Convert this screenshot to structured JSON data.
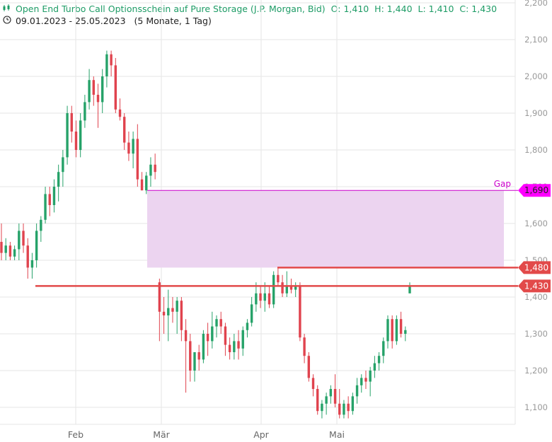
{
  "header": {
    "title": "Open End Turbo Call Optionsschein auf Pure Storage (J.P. Morgan, Bid)",
    "ohlc": "O: 1,410  H: 1,440  L: 1,410  C: 1,430",
    "range": "09.01.2023 - 25.05.2023",
    "period": "(5 Monate, 1 Tag)",
    "chart_icon": "candlestick-icon",
    "clock_icon": "clock-icon"
  },
  "colors": {
    "up": "#26a269",
    "down": "#e0434e",
    "gap_fill": "#ecd4f0",
    "gap_line": "#cc00cc",
    "level_line": "#e24a4a",
    "grid": "#e6e6e6"
  },
  "chart_data": {
    "type": "candlestick",
    "y_ticks": [
      "1,100",
      "1,200",
      "1,300",
      "1,400",
      "1,500",
      "1,600",
      "1,700",
      "1,800",
      "1,900",
      "2,000",
      "2,100",
      "2,200"
    ],
    "ylim": [
      1.03,
      2.2
    ],
    "x_labels": [
      "Feb",
      "Mär",
      "Apr",
      "Mai"
    ],
    "candles": [
      [
        1.55,
        1.6,
        1.5,
        1.52
      ],
      [
        1.52,
        1.56,
        1.5,
        1.54
      ],
      [
        1.54,
        1.55,
        1.5,
        1.51
      ],
      [
        1.51,
        1.54,
        1.5,
        1.53
      ],
      [
        1.53,
        1.6,
        1.5,
        1.58
      ],
      [
        1.58,
        1.6,
        1.52,
        1.54
      ],
      [
        1.54,
        1.56,
        1.45,
        1.48
      ],
      [
        1.48,
        1.52,
        1.45,
        1.5
      ],
      [
        1.5,
        1.6,
        1.48,
        1.58
      ],
      [
        1.58,
        1.62,
        1.55,
        1.61
      ],
      [
        1.61,
        1.7,
        1.6,
        1.68
      ],
      [
        1.68,
        1.7,
        1.62,
        1.65
      ],
      [
        1.65,
        1.72,
        1.63,
        1.7
      ],
      [
        1.7,
        1.76,
        1.66,
        1.74
      ],
      [
        1.74,
        1.8,
        1.7,
        1.78
      ],
      [
        1.78,
        1.92,
        1.76,
        1.9
      ],
      [
        1.9,
        1.92,
        1.82,
        1.85
      ],
      [
        1.85,
        1.88,
        1.78,
        1.8
      ],
      [
        1.8,
        1.9,
        1.78,
        1.88
      ],
      [
        1.88,
        1.95,
        1.86,
        1.93
      ],
      [
        1.93,
        2.02,
        1.91,
        1.99
      ],
      [
        1.99,
        2.0,
        1.92,
        1.95
      ],
      [
        1.95,
        1.98,
        1.86,
        1.93
      ],
      [
        1.93,
        2.02,
        1.9,
        2.0
      ],
      [
        2.0,
        2.07,
        1.97,
        2.06
      ],
      [
        2.06,
        2.07,
        2.0,
        2.03
      ],
      [
        2.03,
        2.05,
        1.9,
        1.91
      ],
      [
        1.91,
        1.94,
        1.88,
        1.89
      ],
      [
        1.89,
        1.9,
        1.8,
        1.82
      ],
      [
        1.82,
        1.85,
        1.77,
        1.79
      ],
      [
        1.79,
        1.85,
        1.75,
        1.83
      ],
      [
        1.83,
        1.87,
        1.7,
        1.72
      ],
      [
        1.72,
        1.74,
        1.69,
        1.69
      ],
      [
        1.69,
        1.74,
        1.68,
        1.73
      ],
      [
        1.73,
        1.78,
        1.7,
        1.76
      ],
      [
        1.76,
        1.79,
        1.72,
        1.74
      ],
      [
        1.44,
        1.45,
        1.28,
        1.36
      ],
      [
        1.36,
        1.4,
        1.3,
        1.35
      ],
      [
        1.35,
        1.42,
        1.28,
        1.37
      ],
      [
        1.37,
        1.4,
        1.33,
        1.36
      ],
      [
        1.36,
        1.4,
        1.3,
        1.39
      ],
      [
        1.39,
        1.4,
        1.28,
        1.31
      ],
      [
        1.31,
        1.34,
        1.14,
        1.28
      ],
      [
        1.28,
        1.3,
        1.17,
        1.2
      ],
      [
        1.2,
        1.25,
        1.17,
        1.25
      ],
      [
        1.25,
        1.27,
        1.2,
        1.23
      ],
      [
        1.23,
        1.31,
        1.22,
        1.3
      ],
      [
        1.3,
        1.33,
        1.24,
        1.28
      ],
      [
        1.28,
        1.36,
        1.26,
        1.32
      ],
      [
        1.32,
        1.35,
        1.29,
        1.34
      ],
      [
        1.34,
        1.36,
        1.3,
        1.32
      ],
      [
        1.32,
        1.33,
        1.24,
        1.27
      ],
      [
        1.27,
        1.29,
        1.23,
        1.25
      ],
      [
        1.25,
        1.3,
        1.23,
        1.28
      ],
      [
        1.28,
        1.31,
        1.23,
        1.26
      ],
      [
        1.26,
        1.32,
        1.24,
        1.31
      ],
      [
        1.31,
        1.34,
        1.29,
        1.33
      ],
      [
        1.33,
        1.4,
        1.32,
        1.38
      ],
      [
        1.38,
        1.44,
        1.36,
        1.41
      ],
      [
        1.41,
        1.43,
        1.37,
        1.39
      ],
      [
        1.39,
        1.44,
        1.36,
        1.41
      ],
      [
        1.41,
        1.43,
        1.37,
        1.38
      ],
      [
        1.38,
        1.47,
        1.37,
        1.46
      ],
      [
        1.46,
        1.48,
        1.43,
        1.44
      ],
      [
        1.44,
        1.46,
        1.4,
        1.41
      ],
      [
        1.41,
        1.47,
        1.4,
        1.43
      ],
      [
        1.43,
        1.45,
        1.41,
        1.42
      ],
      [
        1.42,
        1.44,
        1.4,
        1.43
      ],
      [
        1.43,
        1.44,
        1.28,
        1.29
      ],
      [
        1.29,
        1.3,
        1.22,
        1.24
      ],
      [
        1.24,
        1.25,
        1.17,
        1.18
      ],
      [
        1.18,
        1.19,
        1.13,
        1.15
      ],
      [
        1.15,
        1.16,
        1.08,
        1.09
      ],
      [
        1.09,
        1.12,
        1.07,
        1.11
      ],
      [
        1.11,
        1.14,
        1.08,
        1.13
      ],
      [
        1.13,
        1.16,
        1.11,
        1.15
      ],
      [
        1.15,
        1.19,
        1.1,
        1.11
      ],
      [
        1.11,
        1.15,
        1.07,
        1.08
      ],
      [
        1.08,
        1.12,
        1.07,
        1.11
      ],
      [
        1.11,
        1.13,
        1.07,
        1.09
      ],
      [
        1.09,
        1.14,
        1.08,
        1.13
      ],
      [
        1.13,
        1.18,
        1.11,
        1.16
      ],
      [
        1.16,
        1.19,
        1.14,
        1.18
      ],
      [
        1.18,
        1.2,
        1.15,
        1.17
      ],
      [
        1.17,
        1.21,
        1.13,
        1.2
      ],
      [
        1.2,
        1.24,
        1.18,
        1.22
      ],
      [
        1.22,
        1.25,
        1.2,
        1.24
      ],
      [
        1.24,
        1.29,
        1.22,
        1.28
      ],
      [
        1.28,
        1.35,
        1.26,
        1.34
      ],
      [
        1.34,
        1.35,
        1.26,
        1.28
      ],
      [
        1.28,
        1.35,
        1.27,
        1.34
      ],
      [
        1.34,
        1.36,
        1.29,
        1.3
      ],
      [
        1.3,
        1.32,
        1.28,
        1.31
      ],
      [
        1.41,
        1.44,
        1.41,
        1.43
      ]
    ],
    "candle_format": "open, high, low, close",
    "gap": {
      "label": "Gap",
      "top": 1.69,
      "bottom": 1.48,
      "value_label": "1,690"
    },
    "levels": [
      {
        "value": 1.48,
        "label": "1,480"
      },
      {
        "value": 1.43,
        "label": "1,430"
      }
    ]
  }
}
